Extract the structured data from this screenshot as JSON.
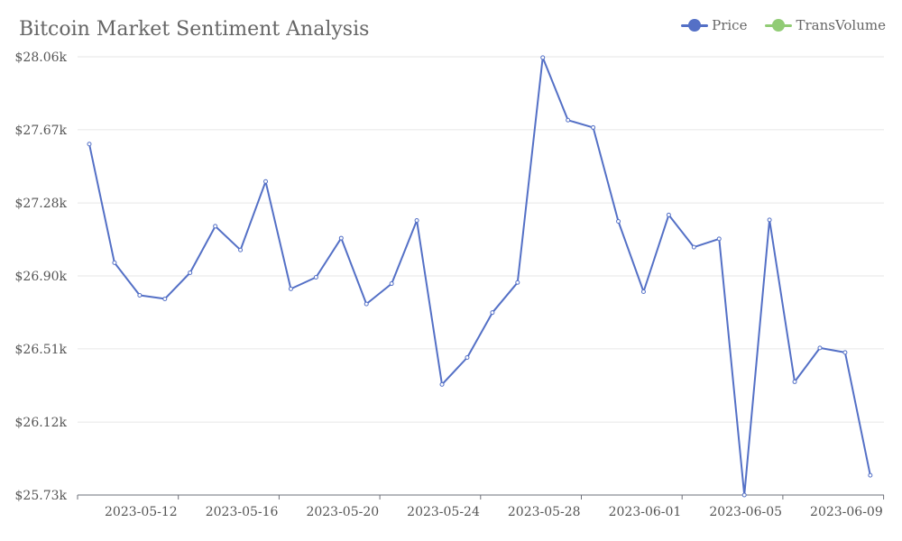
{
  "chart_data": {
    "type": "line",
    "title": "Bitcoin Market Sentiment Analysis",
    "xlabel": "",
    "ylabel": "",
    "legend_position": "top-right",
    "grid": true,
    "ylim": [
      25730,
      28060
    ],
    "y_ticks": [
      "$25.73k",
      "$26.12k",
      "$26.51k",
      "$26.90k",
      "$27.28k",
      "$27.67k",
      "$28.06k"
    ],
    "y_tick_values": [
      25730,
      26118,
      26507,
      26895,
      27283,
      27672,
      28060
    ],
    "x_ticks": [
      "2023-05-12",
      "2023-05-16",
      "2023-05-20",
      "2023-05-24",
      "2023-05-28",
      "2023-06-01",
      "2023-06-05",
      "2023-06-09"
    ],
    "x": [
      "2023-05-10",
      "2023-05-11",
      "2023-05-12",
      "2023-05-13",
      "2023-05-14",
      "2023-05-15",
      "2023-05-16",
      "2023-05-17",
      "2023-05-18",
      "2023-05-19",
      "2023-05-20",
      "2023-05-21",
      "2023-05-22",
      "2023-05-23",
      "2023-05-24",
      "2023-05-25",
      "2023-05-26",
      "2023-05-27",
      "2023-05-28",
      "2023-05-29",
      "2023-05-30",
      "2023-05-31",
      "2023-06-01",
      "2023-06-02",
      "2023-06-03",
      "2023-06-04",
      "2023-06-05",
      "2023-06-06",
      "2023-06-07",
      "2023-06-08",
      "2023-06-09",
      "2023-06-10"
    ],
    "series": [
      {
        "name": "Price",
        "color": "#5470c6",
        "values": [
          27596,
          26965,
          26792,
          26773,
          26912,
          27159,
          27033,
          27397,
          26826,
          26888,
          27096,
          26746,
          26854,
          27190,
          26318,
          26461,
          26700,
          26860,
          28056,
          27723,
          27684,
          27185,
          26811,
          27219,
          27048,
          27092,
          25730,
          27193,
          26332,
          26512,
          26488,
          25835
        ]
      }
    ],
    "legend": [
      {
        "name": "Price",
        "color": "#5470c6"
      },
      {
        "name": "TransVolume",
        "color": "#91cc75"
      }
    ]
  }
}
